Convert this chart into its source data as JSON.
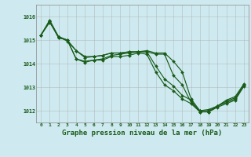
{
  "title": "Graphe pression niveau de la mer (hPa)",
  "bg_color": "#ceeaf0",
  "line_color": "#1a5c1a",
  "grid_color": "#aaaaaa",
  "xlim": [
    -0.5,
    23.5
  ],
  "ylim": [
    1011.5,
    1016.5
  ],
  "yticks": [
    1012,
    1013,
    1014,
    1015,
    1016
  ],
  "xticks": [
    0,
    1,
    2,
    3,
    4,
    5,
    6,
    7,
    8,
    9,
    10,
    11,
    12,
    13,
    14,
    15,
    16,
    17,
    18,
    19,
    20,
    21,
    22,
    23
  ],
  "series": [
    [
      1015.2,
      1015.75,
      1015.15,
      1014.95,
      1014.55,
      1014.3,
      1014.3,
      1014.35,
      1014.45,
      1014.45,
      1014.5,
      1014.5,
      1014.55,
      1014.45,
      1014.45,
      1014.1,
      1013.65,
      1012.5,
      1012.0,
      1012.05,
      1012.2,
      1012.45,
      1012.6,
      1013.15
    ],
    [
      1015.2,
      1015.85,
      1015.15,
      1015.0,
      1014.55,
      1014.25,
      1014.3,
      1014.35,
      1014.45,
      1014.45,
      1014.5,
      1014.5,
      1014.5,
      1014.4,
      1014.4,
      1013.5,
      1013.1,
      1012.35,
      1012.0,
      1012.0,
      1012.2,
      1012.4,
      1012.55,
      1013.1
    ],
    [
      1015.2,
      1015.8,
      1015.1,
      1015.0,
      1014.2,
      1014.1,
      1014.15,
      1014.2,
      1014.35,
      1014.4,
      1014.45,
      1014.5,
      1014.5,
      1013.9,
      1013.35,
      1013.05,
      1012.65,
      1012.45,
      1011.95,
      1011.95,
      1012.2,
      1012.35,
      1012.5,
      1013.1
    ],
    [
      1015.2,
      1015.8,
      1015.1,
      1015.0,
      1014.2,
      1014.05,
      1014.15,
      1014.15,
      1014.3,
      1014.3,
      1014.35,
      1014.45,
      1014.4,
      1013.65,
      1013.1,
      1012.85,
      1012.5,
      1012.3,
      1011.95,
      1011.95,
      1012.15,
      1012.3,
      1012.45,
      1013.05
    ]
  ]
}
